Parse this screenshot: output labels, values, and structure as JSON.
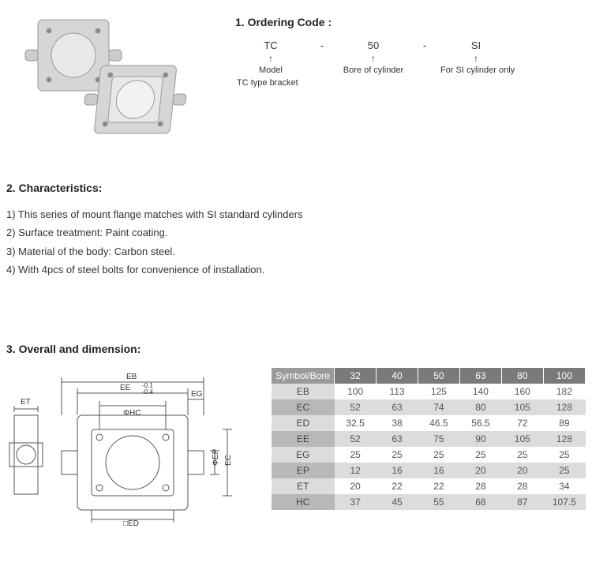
{
  "ordering": {
    "title": "1. Ordering Code :",
    "parts": [
      {
        "value": "TC",
        "arrow": "↑",
        "label": "Model"
      },
      {
        "dash": "-"
      },
      {
        "value": "50",
        "arrow": "↑",
        "label": "Bore of cylinder"
      },
      {
        "dash": "-"
      },
      {
        "value": "SI",
        "arrow": "↑",
        "label": "For SI cylinder only"
      }
    ],
    "subnote": "TC type bracket"
  },
  "characteristics": {
    "title": "2. Characteristics:",
    "items": [
      "1) This series of mount flange matches with SI standard cylinders",
      "2) Surface treatment: Paint coating.",
      "3) Material of the body: Carbon steel.",
      "4) With 4pcs of steel bolts for convenience of installation."
    ]
  },
  "dimension": {
    "title": "3. Overall and dimension:",
    "diagram_labels": {
      "EB": "EB",
      "EE": "EE",
      "EE_tol_top": "-0.1",
      "EE_tol_bot": "-0.4",
      "ET": "ET",
      "EG": "EG",
      "PHC": "ΦHC",
      "ED": "□ED",
      "EP": "ΦEP",
      "EC": "EC"
    },
    "table": {
      "header_label": "Symbol/Bore",
      "bores": [
        "32",
        "40",
        "50",
        "63",
        "80",
        "100"
      ],
      "rows": [
        {
          "sym": "EB",
          "vals": [
            "100",
            "113",
            "125",
            "140",
            "160",
            "182"
          ],
          "alt": false
        },
        {
          "sym": "EC",
          "vals": [
            "52",
            "63",
            "74",
            "80",
            "105",
            "128"
          ],
          "alt": true
        },
        {
          "sym": "ED",
          "vals": [
            "32.5",
            "38",
            "46.5",
            "56.5",
            "72",
            "89"
          ],
          "alt": false
        },
        {
          "sym": "EE",
          "vals": [
            "52",
            "63",
            "75",
            "90",
            "105",
            "128"
          ],
          "alt": true
        },
        {
          "sym": "EG",
          "vals": [
            "25",
            "25",
            "25",
            "25",
            "25",
            "25"
          ],
          "alt": false
        },
        {
          "sym": "EP",
          "vals": [
            "12",
            "16",
            "16",
            "20",
            "20",
            "25"
          ],
          "alt": true
        },
        {
          "sym": "ET",
          "vals": [
            "20",
            "22",
            "22",
            "28",
            "28",
            "34"
          ],
          "alt": false
        },
        {
          "sym": "HC",
          "vals": [
            "37",
            "45",
            "55",
            "68",
            "87",
            "107.5"
          ],
          "alt": true
        }
      ]
    }
  },
  "colors": {
    "header_bg": "#7a7a7a",
    "header_sym_bg": "#9a9a9a",
    "row_sym_bg": "#dcdcdc",
    "row_sym_alt_bg": "#b8b8b8",
    "row_val_bg": "#ffffff",
    "row_val_alt_bg": "#dcdcdc",
    "text": "#333333",
    "diagram_stroke": "#555555"
  }
}
